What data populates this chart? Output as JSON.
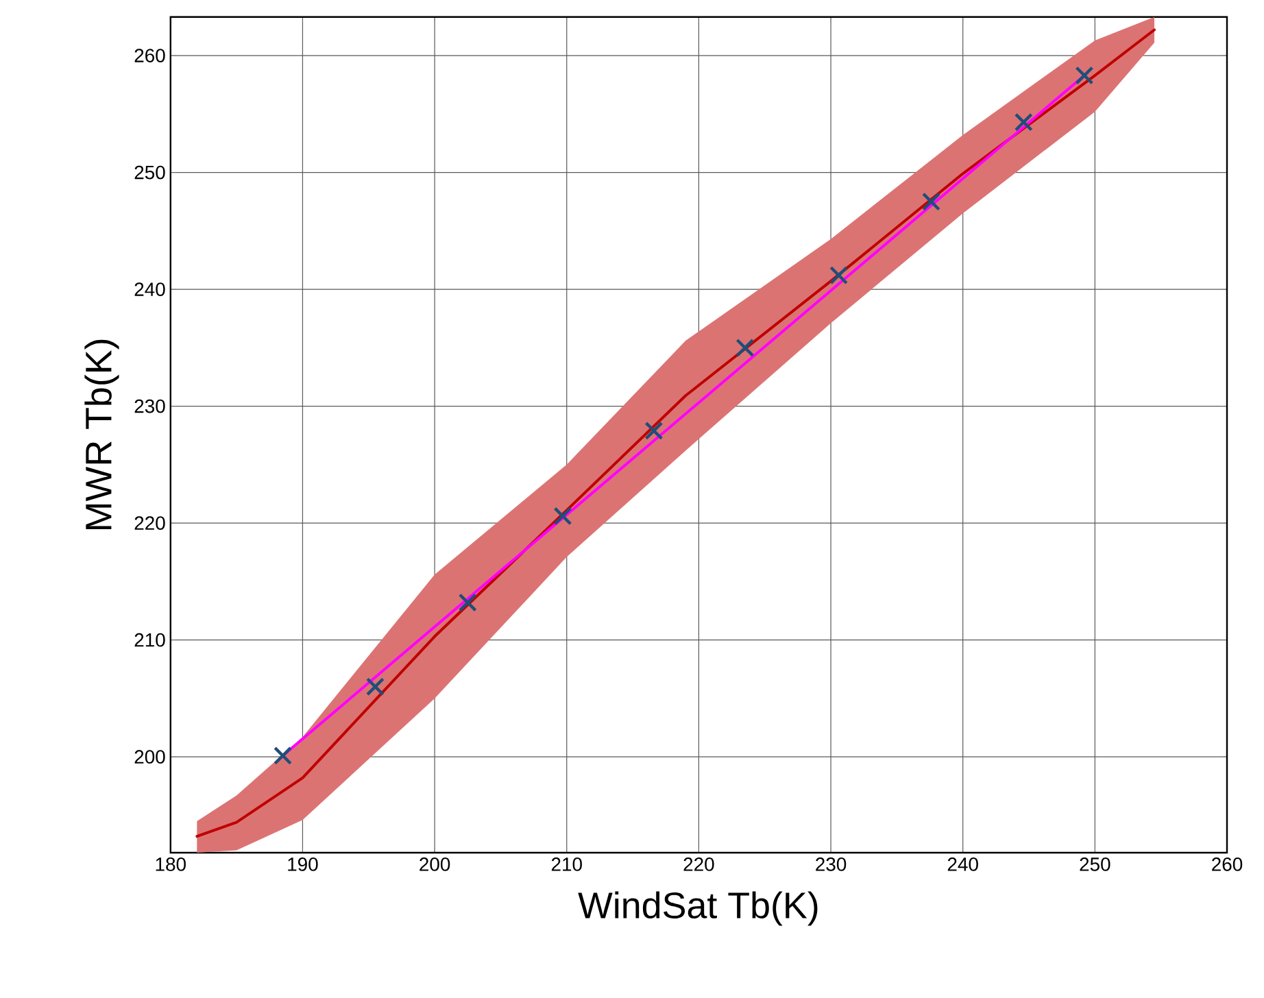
{
  "chart_data": {
    "type": "scatter",
    "xlabel": "WindSat Tb(K)",
    "ylabel": "MWR Tb(K)",
    "xlim": [
      180,
      260
    ],
    "ylim": [
      191.8,
      263.3
    ],
    "xticks": [
      180,
      190,
      200,
      210,
      220,
      230,
      240,
      250,
      260
    ],
    "yticks": [
      200,
      210,
      220,
      230,
      240,
      250,
      260
    ],
    "grid": true,
    "series": [
      {
        "type": "line",
        "color": "#c00000",
        "line_style": "solid",
        "marker": "none",
        "x": [
          182,
          185,
          190,
          200,
          210,
          219,
          230,
          240,
          250,
          254.5
        ],
        "values": [
          193.2,
          194.4,
          198.2,
          210.3,
          221.1,
          230.9,
          240.7,
          249.9,
          258.3,
          262.2
        ],
        "lower": [
          191.8,
          192,
          194.6,
          205,
          217.1,
          226.2,
          237.1,
          246.5,
          255.2,
          261.1
        ],
        "upper": [
          194.5,
          196.7,
          201.7,
          215.6,
          225,
          235.6,
          244.3,
          253.2,
          261.3,
          263.3
        ]
      },
      {
        "type": "line",
        "color": "#ff00ff",
        "line_style": "solid",
        "marker": "none",
        "x": [
          188.5,
          249.2
        ],
        "values": [
          200.1,
          258.3
        ]
      },
      {
        "color": "#1f4e79",
        "marker": "cross",
        "x": [
          188.5,
          195.5,
          202.5,
          209.7,
          216.6,
          223.5,
          230.6,
          237.6,
          244.6,
          249.2
        ],
        "values": [
          200.1,
          206.0,
          213.2,
          220.6,
          227.9,
          235.0,
          241.2,
          247.5,
          254.3,
          258.3
        ]
      }
    ]
  }
}
